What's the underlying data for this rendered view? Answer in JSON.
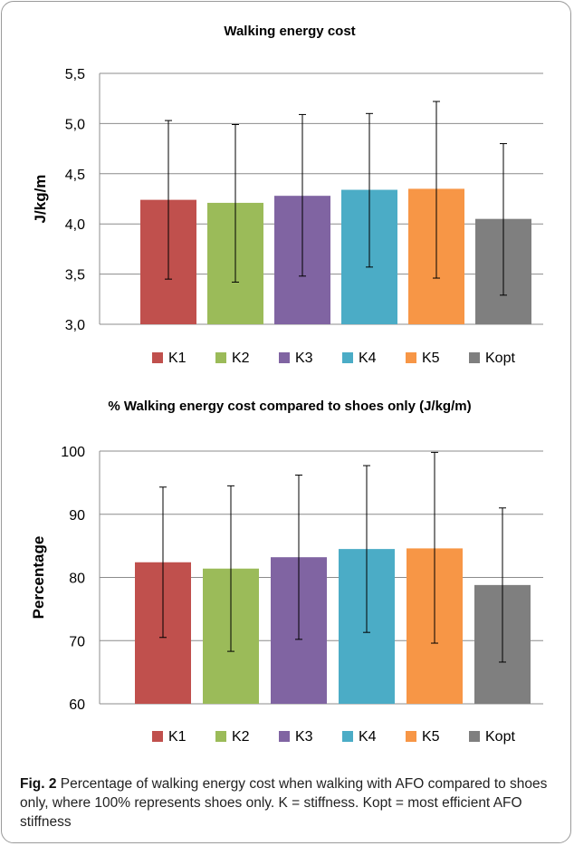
{
  "chart_data": [
    {
      "type": "bar",
      "title": "Walking energy cost",
      "xlabel": "",
      "ylabel": "J/kg/m",
      "ylim": [
        3.0,
        5.5
      ],
      "yticks": [
        "3,0",
        "3,5",
        "4,0",
        "4,5",
        "5,0",
        "5,5"
      ],
      "ytick_values": [
        3.0,
        3.5,
        4.0,
        4.5,
        5.0,
        5.5
      ],
      "categories": [
        "K1",
        "K2",
        "K3",
        "K4",
        "K5",
        "Kopt"
      ],
      "values": [
        4.24,
        4.21,
        4.28,
        4.34,
        4.35,
        4.05
      ],
      "error_low": [
        3.45,
        3.42,
        3.48,
        3.57,
        3.46,
        3.29
      ],
      "error_high": [
        5.03,
        4.99,
        5.09,
        5.1,
        5.22,
        4.8
      ],
      "grid": true,
      "legend": "bottom"
    },
    {
      "type": "bar",
      "title": "%  Walking energy cost compared to shoes only (J/kg/m)",
      "xlabel": "",
      "ylabel": "Percentage",
      "ylim": [
        60,
        100
      ],
      "yticks": [
        "60",
        "70",
        "80",
        "90",
        "100"
      ],
      "ytick_values": [
        60,
        70,
        80,
        90,
        100
      ],
      "categories": [
        "K1",
        "K2",
        "K3",
        "K4",
        "K5",
        "Kopt"
      ],
      "values": [
        82.4,
        81.4,
        83.2,
        84.5,
        84.6,
        78.8
      ],
      "error_low": [
        70.5,
        68.3,
        70.2,
        71.3,
        69.6,
        66.6
      ],
      "error_high": [
        94.3,
        94.5,
        96.2,
        97.7,
        99.8,
        91.0
      ],
      "grid": true,
      "legend": "bottom"
    }
  ],
  "colors": [
    "#c0504d",
    "#9bbb59",
    "#8064a2",
    "#4bacc6",
    "#f79646",
    "#7f7f7f"
  ],
  "caption": {
    "label": "Fig. 2",
    "text": "Percentage of walking energy cost when walking with AFO compared to shoes only, where 100% represents shoes only. K = stiffness. Kopt = most efficient AFO stiffness"
  }
}
